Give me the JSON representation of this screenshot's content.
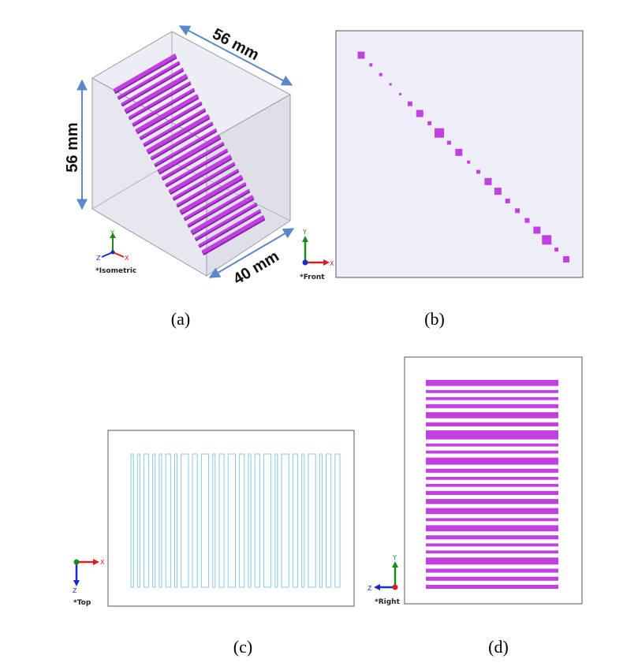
{
  "panels": {
    "a": {
      "caption": "(a)",
      "view_label": "*Isometric",
      "dim_width": "56 mm",
      "dim_height": "56 mm",
      "dim_depth": "40 mm",
      "rods": [
        0,
        1,
        2,
        3,
        4,
        5,
        6,
        7,
        8,
        9,
        10,
        11,
        12,
        13,
        14,
        15,
        16,
        17,
        18,
        19,
        20,
        21,
        22,
        23,
        24
      ]
    },
    "b": {
      "caption": "(b)",
      "view_label": "*Front",
      "sizes": [
        9,
        4,
        4,
        3,
        3,
        6,
        9,
        5,
        12,
        5,
        9,
        4,
        5,
        9,
        9,
        6,
        6,
        6,
        9,
        12,
        5,
        8
      ]
    },
    "c": {
      "caption": "(c)",
      "view_label": "*Top",
      "bars": [
        0.5,
        0.5,
        1,
        0.5,
        0.5,
        1,
        0.5,
        1.5,
        1,
        1.5,
        0.5,
        1,
        1.5,
        1,
        0.5,
        1,
        1.5,
        0.5,
        1.5,
        1,
        0.5,
        1.5,
        0.5,
        1,
        1
      ]
    },
    "d": {
      "caption": "(d)",
      "view_label": "*Right",
      "rows": [
        6,
        3,
        3,
        4,
        6,
        4,
        9,
        3,
        3,
        7,
        4,
        3,
        3,
        4,
        5,
        6,
        3,
        6,
        4,
        3,
        3,
        7,
        4,
        4,
        4
      ]
    }
  },
  "axis_labels": {
    "x": "X",
    "y": "Y",
    "z": "Z"
  },
  "colors": {
    "rod": "#c040e0",
    "rod_dark": "#8a1fb0",
    "face": "#e8e8f2",
    "panel_bg": "#eeeef8",
    "outline": "#88c8e0",
    "dim_line": "#5a88c8",
    "x_axis": "#d42020",
    "y_axis": "#1a8a1a",
    "z_axis": "#1a2ac8"
  }
}
